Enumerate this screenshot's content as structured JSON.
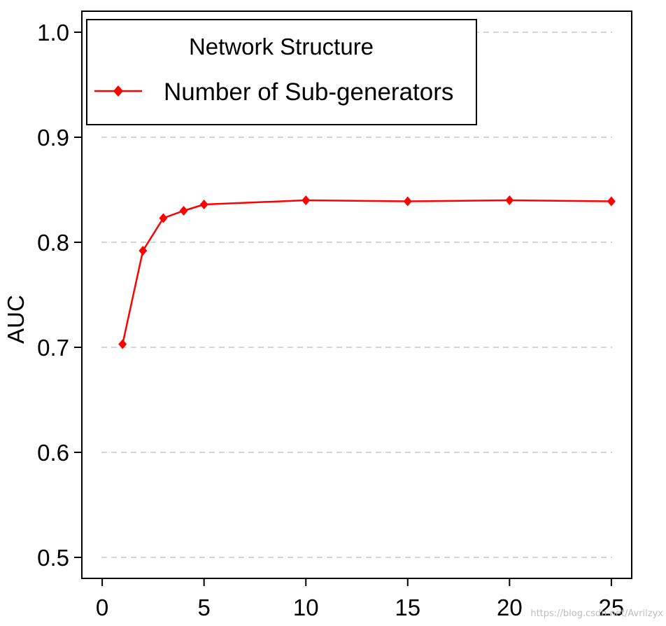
{
  "chart_data": {
    "type": "line",
    "ylabel": "AUC",
    "xlabel": "",
    "xlim": [
      -1,
      26
    ],
    "ylim": [
      0.48,
      1.02
    ],
    "x_ticks": [
      0,
      5,
      10,
      15,
      20,
      25
    ],
    "y_ticks": [
      "0.5",
      "0.6",
      "0.7",
      "0.8",
      "0.9",
      "1.0"
    ],
    "grid": "horizontal dashed gridlines",
    "legend": {
      "placement": "top-left",
      "title": "Network Structure"
    },
    "series": [
      {
        "name": "Number of Sub-generators",
        "color": "#ff0000",
        "marker": "diamond",
        "x": [
          1,
          2,
          3,
          4,
          5,
          10,
          15,
          20,
          25
        ],
        "y": [
          0.703,
          0.792,
          0.823,
          0.83,
          0.836,
          0.84,
          0.839,
          0.84,
          0.839
        ]
      }
    ]
  },
  "watermark": "https://blog.csdn.net/Avrilzyx"
}
